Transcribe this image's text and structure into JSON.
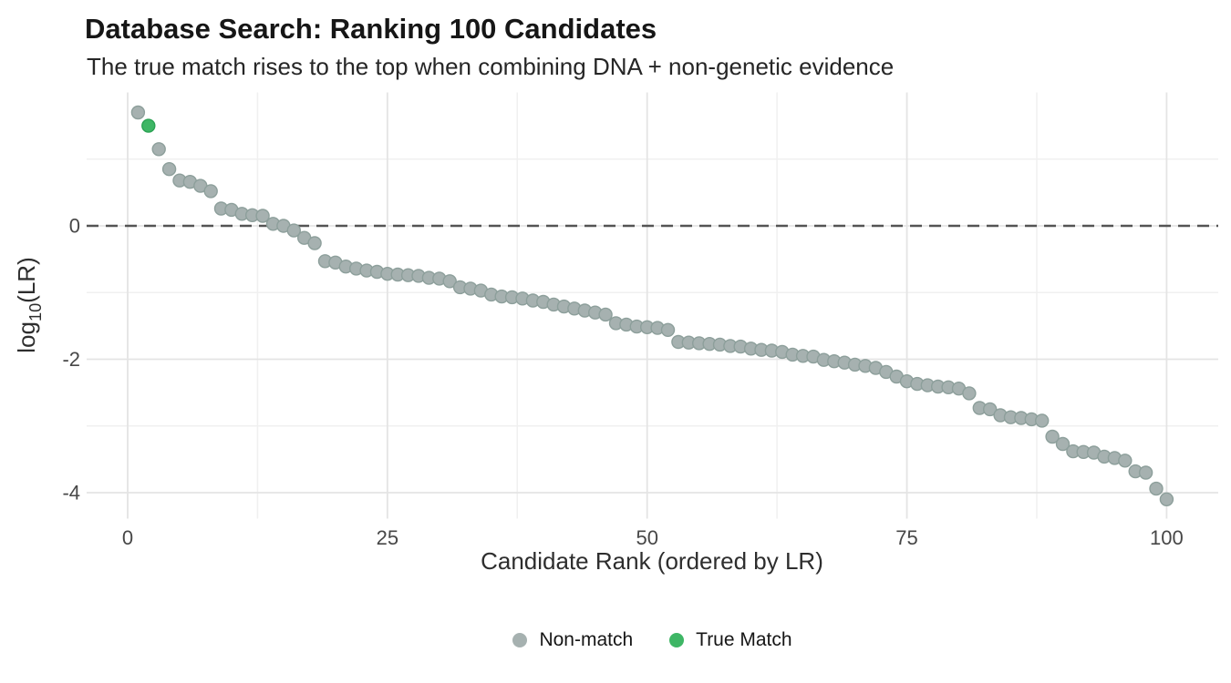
{
  "colors": {
    "background": "#ffffff",
    "non_match_fill": "#a6b1b0",
    "non_match_stroke": "#8d9f9b",
    "true_match_fill": "#3eb665",
    "true_match_stroke": "#2aa253",
    "zero_line": "#545454",
    "grid_major": "#e4e4e4",
    "grid_minor": "#f0f0f0",
    "axis_text": "#474747",
    "title_text": "#161616"
  },
  "chart_data": {
    "type": "scatter",
    "title": "Database Search: Ranking 100 Candidates",
    "subtitle": "The true match rises to the top when combining DNA + non-genetic evidence",
    "xlabel": "Candidate Rank (ordered by LR)",
    "ylabel": "log10(LR)",
    "ylabel_parts": {
      "pre": "log",
      "sub": "10",
      "post": "(LR)"
    },
    "x_ticks": [
      0,
      25,
      50,
      75,
      100
    ],
    "y_ticks": [
      0,
      -2,
      -4
    ],
    "x_minor_gridlines": [
      12.5,
      37.5,
      62.5,
      87.5
    ],
    "y_minor_gridlines": [
      1,
      -1,
      -3
    ],
    "xlim": [
      -4,
      105
    ],
    "ylim": [
      -4.4,
      2.0
    ],
    "grid": true,
    "zero_reference_line": 0,
    "legend_position": "bottom-center",
    "legend": [
      {
        "label": "Non-match",
        "color_key": "non_match_fill"
      },
      {
        "label": "True Match",
        "color_key": "true_match_fill"
      }
    ],
    "true_match_rank": 2,
    "series": [
      {
        "name": "log10(LR) by candidate rank",
        "x_is_rank_starting_at": 1,
        "values": [
          1.7,
          1.5,
          1.15,
          0.85,
          0.68,
          0.66,
          0.6,
          0.52,
          0.26,
          0.24,
          0.18,
          0.16,
          0.15,
          0.03,
          0.0,
          -0.07,
          -0.18,
          -0.26,
          -0.53,
          -0.55,
          -0.61,
          -0.64,
          -0.67,
          -0.69,
          -0.72,
          -0.73,
          -0.74,
          -0.75,
          -0.78,
          -0.79,
          -0.83,
          -0.92,
          -0.94,
          -0.97,
          -1.03,
          -1.06,
          -1.07,
          -1.09,
          -1.12,
          -1.14,
          -1.18,
          -1.21,
          -1.24,
          -1.27,
          -1.3,
          -1.33,
          -1.46,
          -1.48,
          -1.51,
          -1.52,
          -1.53,
          -1.56,
          -1.74,
          -1.75,
          -1.76,
          -1.77,
          -1.78,
          -1.8,
          -1.81,
          -1.84,
          -1.86,
          -1.87,
          -1.89,
          -1.93,
          -1.95,
          -1.96,
          -2.01,
          -2.03,
          -2.05,
          -2.08,
          -2.1,
          -2.13,
          -2.19,
          -2.26,
          -2.33,
          -2.37,
          -2.39,
          -2.41,
          -2.42,
          -2.44,
          -2.51,
          -2.73,
          -2.75,
          -2.84,
          -2.87,
          -2.88,
          -2.9,
          -2.92,
          -3.16,
          -3.27,
          -3.38,
          -3.39,
          -3.4,
          -3.46,
          -3.48,
          -3.52,
          -3.68,
          -3.7,
          -3.94,
          -4.1
        ]
      }
    ]
  }
}
